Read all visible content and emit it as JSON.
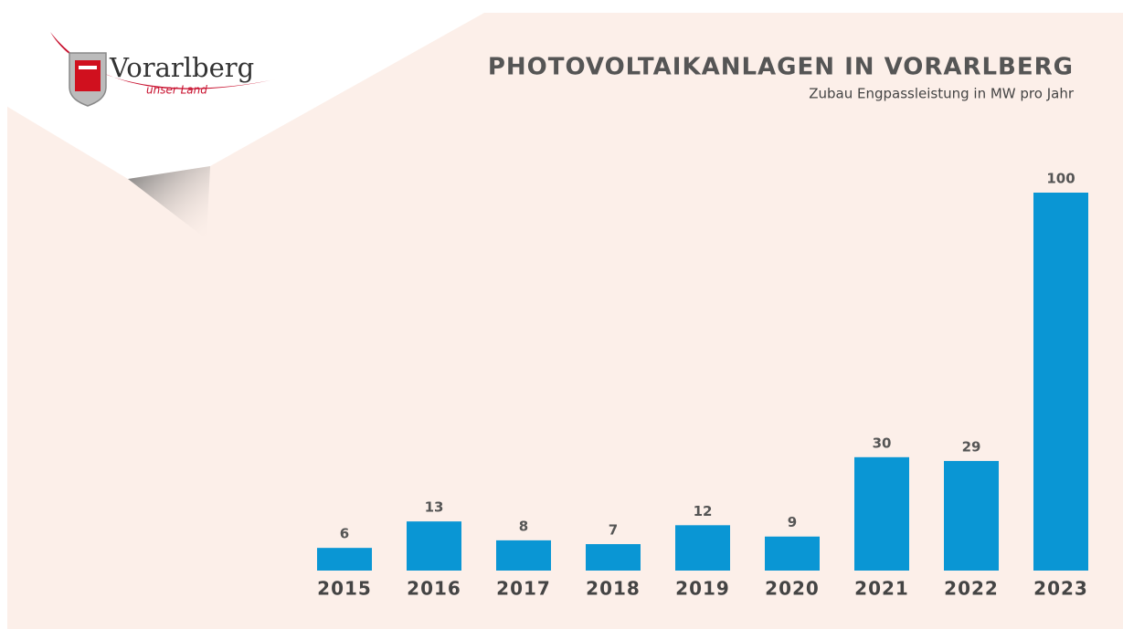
{
  "logo": {
    "name": "Vorarlberg",
    "tagline": "unser Land"
  },
  "chart_data": {
    "type": "bar",
    "title": "PHOTOVOLTAIKANLAGEN IN VORARLBERG",
    "subtitle": "Zubau Engpassleistung in MW pro Jahr",
    "categories": [
      "2015",
      "2016",
      "2017",
      "2018",
      "2019",
      "2020",
      "2021",
      "2022",
      "2023"
    ],
    "values": [
      6,
      13,
      8,
      7,
      12,
      9,
      30,
      29,
      100
    ],
    "color": "#0a96d4"
  }
}
